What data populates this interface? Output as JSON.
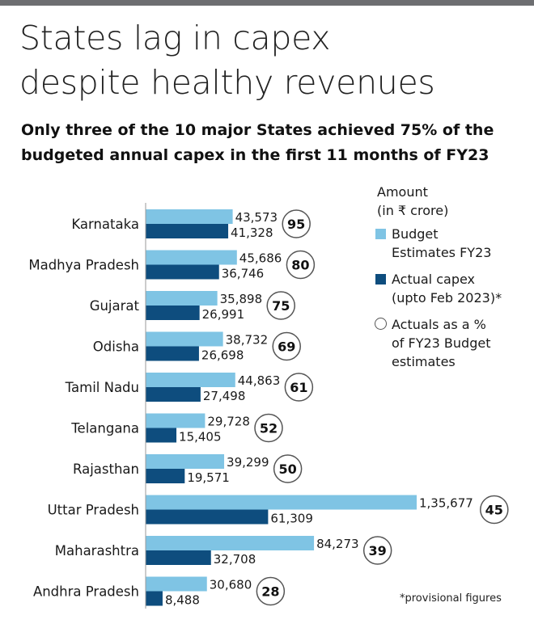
{
  "title_line1": "States lag in capex",
  "title_line2": "despite healthy revenues",
  "subtitle_line1": "Only three of the 10 major States achieved 75% of the",
  "subtitle_line2": "budgeted annual capex in the first 11 months of FY23",
  "legend": {
    "heading_line1": "Amount",
    "heading_line2": "(in ₹ crore)",
    "budget_line1": "Budget",
    "budget_line2": "Estimates FY23",
    "actual_line1": "Actual capex",
    "actual_line2": "(upto Feb 2023)*",
    "pct_line1": "Actuals as a %",
    "pct_line2": "of FY23 Budget",
    "pct_line3": "estimates"
  },
  "footnote": "*provisional figures",
  "colors": {
    "budget": "#7fc4e4",
    "actual": "#0e4d7e",
    "topbar": "#6d6e71",
    "circle_border": "#555555"
  },
  "chart_data": {
    "type": "bar",
    "orientation": "horizontal",
    "categories": [
      "Karnataka",
      "Madhya Pradesh",
      "Gujarat",
      "Odisha",
      "Tamil Nadu",
      "Telangana",
      "Rajasthan",
      "Uttar Pradesh",
      "Maharashtra",
      "Andhra Pradesh"
    ],
    "series": [
      {
        "name": "Budget Estimates FY23",
        "values": [
          43573,
          45686,
          35898,
          38732,
          44863,
          29728,
          39299,
          135677,
          84273,
          30680
        ],
        "labels": [
          "43,573",
          "45,686",
          "35,898",
          "38,732",
          "44,863",
          "29,728",
          "39,299",
          "1,35,677",
          "84,273",
          "30,680"
        ]
      },
      {
        "name": "Actual capex (upto Feb 2023)*",
        "values": [
          41328,
          36746,
          26991,
          26698,
          27498,
          15405,
          19571,
          61309,
          32708,
          8488
        ],
        "labels": [
          "41,328",
          "36,746",
          "26,991",
          "26,698",
          "27,498",
          "15,405",
          "19,571",
          "61,309",
          "32,708",
          "8,488"
        ]
      }
    ],
    "percent_of_budget": [
      95,
      80,
      75,
      69,
      61,
      52,
      50,
      45,
      39,
      28
    ],
    "axis_visible": false,
    "legend_position": "right"
  }
}
